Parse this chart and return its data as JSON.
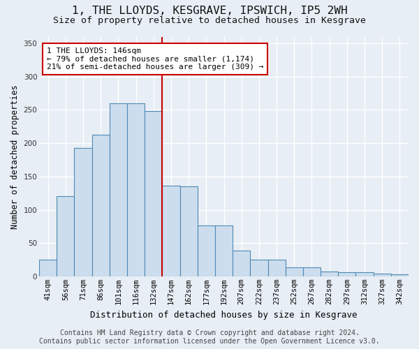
{
  "title": "1, THE LLOYDS, KESGRAVE, IPSWICH, IP5 2WH",
  "subtitle": "Size of property relative to detached houses in Kesgrave",
  "xlabel": "Distribution of detached houses by size in Kesgrave",
  "ylabel": "Number of detached properties",
  "categories": [
    "41sqm",
    "56sqm",
    "71sqm",
    "86sqm",
    "101sqm",
    "116sqm",
    "132sqm",
    "147sqm",
    "162sqm",
    "177sqm",
    "192sqm",
    "207sqm",
    "222sqm",
    "237sqm",
    "252sqm",
    "267sqm",
    "282sqm",
    "297sqm",
    "312sqm",
    "327sqm",
    "342sqm"
  ],
  "values": [
    25,
    120,
    193,
    213,
    260,
    260,
    248,
    136,
    135,
    76,
    76,
    39,
    25,
    25,
    14,
    14,
    7,
    6,
    6,
    4,
    3
  ],
  "bar_color": "#ccdded",
  "bar_edge_color": "#4d8ab5",
  "vline_color": "#cc0000",
  "vline_x_index": 7.0,
  "annotation_line1": "1 THE LLOYDS: 146sqm",
  "annotation_line2": "← 79% of detached houses are smaller (1,174)",
  "annotation_line3": "21% of semi-detached houses are larger (309) →",
  "ylim_max": 360,
  "yticks": [
    0,
    50,
    100,
    150,
    200,
    250,
    300,
    350
  ],
  "footer_line1": "Contains HM Land Registry data © Crown copyright and database right 2024.",
  "footer_line2": "Contains public sector information licensed under the Open Government Licence v3.0.",
  "bg_color": "#e8eef5",
  "grid_color": "#ffffff",
  "title_fontsize": 11.5,
  "subtitle_fontsize": 9.5,
  "ylabel_fontsize": 8.5,
  "xlabel_fontsize": 9,
  "tick_fontsize": 7.5,
  "footer_fontsize": 7,
  "annot_fontsize": 8
}
